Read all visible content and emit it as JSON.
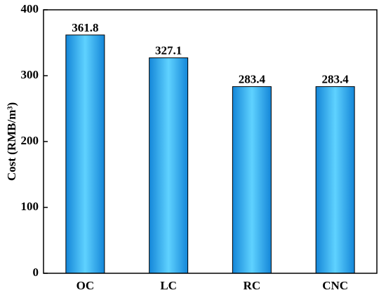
{
  "chart_data": {
    "type": "bar",
    "y_label": "Cost (RMB/m³)",
    "categories": [
      "OC",
      "LC",
      "RC",
      "CNC"
    ],
    "values": [
      361.8,
      327.1,
      283.4,
      283.4
    ],
    "color": "#1486d8",
    "ylim": [
      0,
      400
    ],
    "yticks": [
      0,
      100,
      200,
      300,
      400
    ]
  }
}
